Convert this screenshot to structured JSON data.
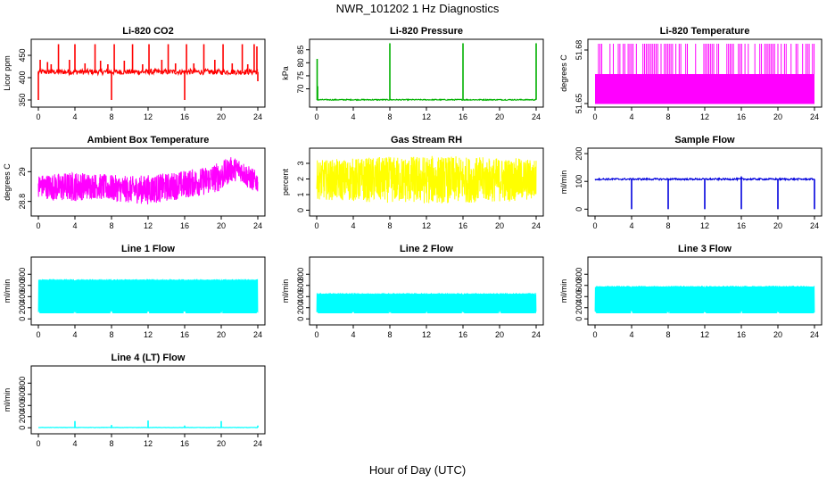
{
  "figure": {
    "title": "NWR_101202  1 Hz Diagnostics",
    "xlabel": "Hour of Day (UTC)"
  },
  "chart_data": [
    {
      "type": "line",
      "title": "Li-820 CO2",
      "ylabel": "Licor ppm",
      "color": "#ff0000",
      "xlim": [
        0,
        24
      ],
      "ylim": [
        340,
        480
      ],
      "xticks": [
        0,
        4,
        8,
        12,
        16,
        20,
        24
      ],
      "yticks": [
        350,
        400,
        450
      ],
      "baseline": 413,
      "noise": 6,
      "spikes": [
        {
          "x": 0.0,
          "y": 350
        },
        {
          "x": 0.2,
          "y": 440
        },
        {
          "x": 1.0,
          "y": 435
        },
        {
          "x": 1.4,
          "y": 430
        },
        {
          "x": 2.2,
          "y": 475
        },
        {
          "x": 3.4,
          "y": 440
        },
        {
          "x": 4.0,
          "y": 475
        },
        {
          "x": 5.1,
          "y": 432
        },
        {
          "x": 6.2,
          "y": 475
        },
        {
          "x": 6.8,
          "y": 438
        },
        {
          "x": 7.6,
          "y": 430
        },
        {
          "x": 8.0,
          "y": 350
        },
        {
          "x": 8.3,
          "y": 475
        },
        {
          "x": 9.4,
          "y": 438
        },
        {
          "x": 10.3,
          "y": 475
        },
        {
          "x": 11.4,
          "y": 430
        },
        {
          "x": 12.1,
          "y": 475
        },
        {
          "x": 13.5,
          "y": 440
        },
        {
          "x": 14.2,
          "y": 475
        },
        {
          "x": 15.0,
          "y": 432
        },
        {
          "x": 16.0,
          "y": 350
        },
        {
          "x": 16.2,
          "y": 475
        },
        {
          "x": 17.0,
          "y": 432
        },
        {
          "x": 18.1,
          "y": 475
        },
        {
          "x": 19.3,
          "y": 440
        },
        {
          "x": 20.2,
          "y": 475
        },
        {
          "x": 21.2,
          "y": 432
        },
        {
          "x": 22.3,
          "y": 475
        },
        {
          "x": 22.9,
          "y": 430
        },
        {
          "x": 23.6,
          "y": 475
        },
        {
          "x": 23.9,
          "y": 470
        },
        {
          "x": 24.0,
          "y": 392
        }
      ]
    },
    {
      "type": "line",
      "title": "Li-820 Pressure",
      "ylabel": "kPa",
      "color": "#00b000",
      "xlim": [
        0,
        24
      ],
      "ylim": [
        64,
        88
      ],
      "xticks": [
        0,
        4,
        8,
        12,
        16,
        20,
        24
      ],
      "yticks": [
        70,
        75,
        80,
        85
      ],
      "baseline": 65.8,
      "noise": 0.2,
      "spikes": [
        {
          "x": 0.05,
          "y": 81.5
        },
        {
          "x": 0.1,
          "y": 71
        },
        {
          "x": 8.0,
          "y": 87.5
        },
        {
          "x": 16.0,
          "y": 87.5
        },
        {
          "x": 24.0,
          "y": 87.5
        }
      ]
    },
    {
      "type": "area",
      "title": "Li-820 Temperature",
      "ylabel": "degrees C",
      "color": "#ff00ff",
      "xlim": [
        0,
        24
      ],
      "ylim": [
        51.6495,
        51.6845
      ],
      "xticks": [
        0,
        4,
        8,
        12,
        16,
        20,
        24
      ],
      "yticks": [
        51.65,
        51.68
      ],
      "band_low": 51.65,
      "band_high": 51.6665,
      "spike_top": 51.6835
    },
    {
      "type": "line",
      "title": "Ambient Box Temperature",
      "ylabel": "degrees C",
      "color": "#ff00ff",
      "xlim": [
        0,
        24
      ],
      "ylim": [
        28.72,
        29.14
      ],
      "xticks": [
        0,
        4,
        8,
        12,
        16,
        20,
        24
      ],
      "yticks": [
        28.8,
        29.0
      ],
      "envelope": [
        {
          "x": 0,
          "low": 28.83,
          "high": 28.98
        },
        {
          "x": 2,
          "low": 28.8,
          "high": 28.99
        },
        {
          "x": 4,
          "low": 28.8,
          "high": 29.0
        },
        {
          "x": 6,
          "low": 28.82,
          "high": 28.99
        },
        {
          "x": 8,
          "low": 28.8,
          "high": 28.98
        },
        {
          "x": 10,
          "low": 28.79,
          "high": 28.97
        },
        {
          "x": 12,
          "low": 28.78,
          "high": 28.98
        },
        {
          "x": 14,
          "low": 28.8,
          "high": 28.99
        },
        {
          "x": 16,
          "low": 28.82,
          "high": 29.01
        },
        {
          "x": 18,
          "low": 28.84,
          "high": 29.03
        },
        {
          "x": 20,
          "low": 28.87,
          "high": 29.07
        },
        {
          "x": 21,
          "low": 28.93,
          "high": 29.1
        },
        {
          "x": 22,
          "low": 28.94,
          "high": 29.09
        },
        {
          "x": 23,
          "low": 28.88,
          "high": 29.04
        },
        {
          "x": 24,
          "low": 28.86,
          "high": 29.0
        }
      ]
    },
    {
      "type": "line",
      "title": "Gas Stream RH",
      "ylabel": "percent",
      "color": "#ffff00",
      "xlim": [
        0,
        24
      ],
      "ylim": [
        -0.2,
        3.8
      ],
      "xticks": [
        0,
        4,
        8,
        12,
        16,
        20,
        24
      ],
      "yticks": [
        0,
        1,
        2,
        3
      ],
      "envelope": [
        {
          "x": 0,
          "low": 0.7,
          "high": 3.2
        },
        {
          "x": 6,
          "low": 0.5,
          "high": 3.4
        },
        {
          "x": 12,
          "low": 0.4,
          "high": 3.5
        },
        {
          "x": 18,
          "low": 0.5,
          "high": 3.4
        },
        {
          "x": 24,
          "low": 0.6,
          "high": 3.3
        }
      ]
    },
    {
      "type": "line",
      "title": "Sample Flow",
      "ylabel": "ml/min",
      "color": "#0000dd",
      "xlim": [
        0,
        24
      ],
      "ylim": [
        -15,
        210
      ],
      "xticks": [
        0,
        4,
        8,
        12,
        16,
        20,
        24
      ],
      "yticks": [
        0,
        100,
        200
      ],
      "baseline": 108,
      "noise": 3,
      "spikes": [
        {
          "x": 4.0,
          "y": 0
        },
        {
          "x": 8.0,
          "y": 0
        },
        {
          "x": 12.0,
          "y": 0
        },
        {
          "x": 16.0,
          "y": 0
        },
        {
          "x": 16.0,
          "y": 118
        },
        {
          "x": 20.0,
          "y": 0
        },
        {
          "x": 24.0,
          "y": 0
        }
      ]
    },
    {
      "type": "area",
      "title": "Line 1 Flow",
      "ylabel": "ml/min",
      "color": "#00ffff",
      "xlim": [
        0,
        24
      ],
      "ylim": [
        -60,
        1060
      ],
      "xticks": [
        0,
        4,
        8,
        12,
        16,
        20,
        24
      ],
      "yticks": [
        0,
        200,
        400,
        600,
        800
      ],
      "band_low": 100,
      "band_high": 700,
      "dips": [
        4,
        8,
        12,
        16,
        20,
        24
      ]
    },
    {
      "type": "area",
      "title": "Line 2 Flow",
      "ylabel": "ml/min",
      "color": "#00ffff",
      "xlim": [
        0,
        24
      ],
      "ylim": [
        -60,
        1060
      ],
      "xticks": [
        0,
        4,
        8,
        12,
        16,
        20,
        24
      ],
      "yticks": [
        0,
        200,
        400,
        600,
        800
      ],
      "band_low": 100,
      "band_high": 450,
      "dips": [
        4,
        8,
        12,
        16,
        20,
        24
      ]
    },
    {
      "type": "area",
      "title": "Line 3 Flow",
      "ylabel": "ml/min",
      "color": "#00ffff",
      "xlim": [
        0,
        24
      ],
      "ylim": [
        -60,
        1060
      ],
      "xticks": [
        0,
        4,
        8,
        12,
        16,
        20,
        24
      ],
      "yticks": [
        0,
        200,
        400,
        600,
        800
      ],
      "band_low": 100,
      "band_high": 580,
      "dips": [
        4,
        8,
        12,
        16,
        20,
        24
      ]
    },
    {
      "type": "line",
      "title": "Line 4 (LT) Flow",
      "ylabel": "ml/min",
      "color": "#00ffff",
      "xlim": [
        0,
        24
      ],
      "ylim": [
        -60,
        1060
      ],
      "xticks": [
        0,
        4,
        8,
        12,
        16,
        20,
        24
      ],
      "yticks": [
        0,
        200,
        400,
        600,
        800
      ],
      "baseline": 5,
      "noise": 3,
      "spikes": [
        {
          "x": 4.0,
          "y": 120
        },
        {
          "x": 8.0,
          "y": 50
        },
        {
          "x": 12.0,
          "y": 130
        },
        {
          "x": 16.0,
          "y": 40
        },
        {
          "x": 20.0,
          "y": 120
        },
        {
          "x": 24.0,
          "y": 40
        }
      ]
    }
  ]
}
